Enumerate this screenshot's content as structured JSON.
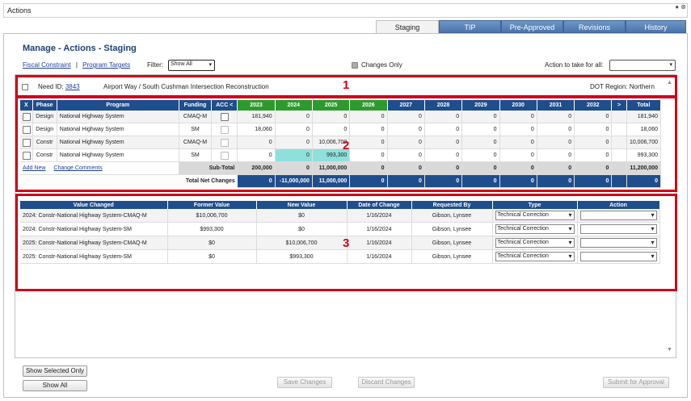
{
  "window": {
    "title": "Actions",
    "controls": "● ⊗"
  },
  "tabs": [
    {
      "label": "Staging",
      "active": true
    },
    {
      "label": "TIP",
      "active": false
    },
    {
      "label": "Pre-Approved",
      "active": false
    },
    {
      "label": "Revisions",
      "active": false
    },
    {
      "label": "History",
      "active": false
    }
  ],
  "page_title": "Manage - Actions - Staging",
  "toolbar": {
    "fiscal_constraint": "Fiscal Constraint",
    "separator": "|",
    "program_targets": "Program Targets",
    "filter_label": "Filter:",
    "filter_value": "Show All",
    "changes_only": "Changes Only",
    "action_all_label": "Action to take for all:",
    "action_all_value": ""
  },
  "need": {
    "label": "Need ID:",
    "id": "3843",
    "project": "Airport Way / South Cushman Intersection Reconstruction",
    "region": "DOT Region: Northern"
  },
  "annotations": {
    "one": "1",
    "two": "2",
    "three": "3"
  },
  "funding": {
    "headers": {
      "x": "X",
      "phase": "Phase",
      "program": "Program",
      "funding": "Funding",
      "acc": "ACC <",
      "years": [
        "2023",
        "2024",
        "2025",
        "2026",
        "2027",
        "2028",
        "2029",
        "2030",
        "2031",
        "2032"
      ],
      "more": ">",
      "total": "Total"
    },
    "rows": [
      {
        "phase": "Design",
        "program": "National Highway System",
        "funding": "CMAQ-M",
        "values": [
          "181,940",
          "0",
          "0",
          "0",
          "0",
          "0",
          "0",
          "0",
          "0",
          "0"
        ],
        "total": "181,940"
      },
      {
        "phase": "Design",
        "program": "National Highway System",
        "funding": "SM",
        "values": [
          "18,060",
          "0",
          "0",
          "0",
          "0",
          "0",
          "0",
          "0",
          "0",
          "0"
        ],
        "total": "18,060"
      },
      {
        "phase": "Constr",
        "program": "National Highway System",
        "funding": "CMAQ-M",
        "values": [
          "0",
          "0",
          "10,006,700",
          "0",
          "0",
          "0",
          "0",
          "0",
          "0",
          "0"
        ],
        "total": "10,006,700"
      },
      {
        "phase": "Constr",
        "program": "National Highway System",
        "funding": "SM",
        "values": [
          "0",
          "0",
          "993,300",
          "0",
          "0",
          "0",
          "0",
          "0",
          "0",
          "0"
        ],
        "total": "993,300"
      }
    ],
    "add_new": "Add New",
    "change_comments": "Change Comments",
    "subtotal_label": "Sub-Total",
    "subtotal": [
      "200,000",
      "0",
      "11,000,000",
      "0",
      "0",
      "0",
      "0",
      "0",
      "0",
      "0"
    ],
    "subtotal_total": "11,200,000",
    "net_label": "Total Net Changes",
    "net": [
      "0",
      "-11,000,000",
      "11,000,000",
      "0",
      "0",
      "0",
      "0",
      "0",
      "0",
      "0"
    ],
    "net_total": "0"
  },
  "changes": {
    "headers": [
      "Value Changed",
      "Former Value",
      "New Value",
      "Date of Change",
      "Requested By",
      "Type",
      "Action"
    ],
    "rows": [
      {
        "value_changed": "2024: Constr-National Highway System-CMAQ-M",
        "former": "$10,006,700",
        "new": "$0",
        "date": "1/16/2024",
        "by": "Gibson, Lynsee",
        "type": "Technical Correction",
        "action": ""
      },
      {
        "value_changed": "2024: Constr-National Highway System-SM",
        "former": "$993,300",
        "new": "$0",
        "date": "1/16/2024",
        "by": "Gibson, Lynsee",
        "type": "Technical Correction",
        "action": ""
      },
      {
        "value_changed": "2025: Constr-National Highway System-CMAQ-M",
        "former": "$0",
        "new": "$10,006,700",
        "date": "1/16/2024",
        "by": "Gibson, Lynsee",
        "type": "Technical Correction",
        "action": ""
      },
      {
        "value_changed": "2025: Constr-National Highway System-SM",
        "former": "$0",
        "new": "$993,300",
        "date": "1/16/2024",
        "by": "Gibson, Lynsee",
        "type": "Technical Correction",
        "action": ""
      }
    ]
  },
  "buttons": {
    "show_selected": "Show Selected Only",
    "show_all": "Show All",
    "save": "Save Changes",
    "discard": "Discard Changes",
    "submit": "Submit for Approval"
  },
  "scroll": {
    "up": "▲",
    "down": "▼"
  },
  "colors": {
    "header_blue": "#1f4e8c",
    "year_green": "#2e9a2e",
    "changed_teal": "#8ee0dc",
    "annotation_red": "#d0021b"
  }
}
